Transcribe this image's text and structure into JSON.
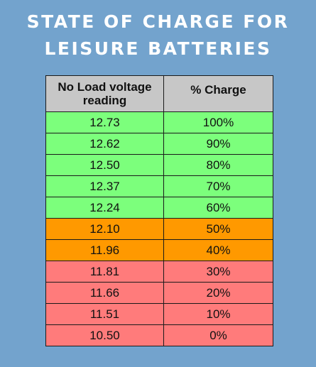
{
  "title": {
    "line1": "STATE OF CHARGE FOR",
    "line2": "LEISURE BATTERIES"
  },
  "table": {
    "headers": {
      "voltage": "No Load voltage reading",
      "charge": "% Charge"
    },
    "colors": {
      "green": "#7cff7c",
      "orange": "#ff9900",
      "red": "#ff7b7b",
      "header": "#c7c7c7",
      "background": "#73a3cd"
    },
    "rows": [
      {
        "voltage": "12.73",
        "charge": "100%",
        "status": "green"
      },
      {
        "voltage": "12.62",
        "charge": "90%",
        "status": "green"
      },
      {
        "voltage": "12.50",
        "charge": "80%",
        "status": "green"
      },
      {
        "voltage": "12.37",
        "charge": "70%",
        "status": "green"
      },
      {
        "voltage": "12.24",
        "charge": "60%",
        "status": "green"
      },
      {
        "voltage": "12.10",
        "charge": "50%",
        "status": "orange"
      },
      {
        "voltage": "11.96",
        "charge": "40%",
        "status": "orange"
      },
      {
        "voltage": "11.81",
        "charge": "30%",
        "status": "red"
      },
      {
        "voltage": "11.66",
        "charge": "20%",
        "status": "red"
      },
      {
        "voltage": "11.51",
        "charge": "10%",
        "status": "red"
      },
      {
        "voltage": "10.50",
        "charge": "0%",
        "status": "red"
      }
    ]
  }
}
